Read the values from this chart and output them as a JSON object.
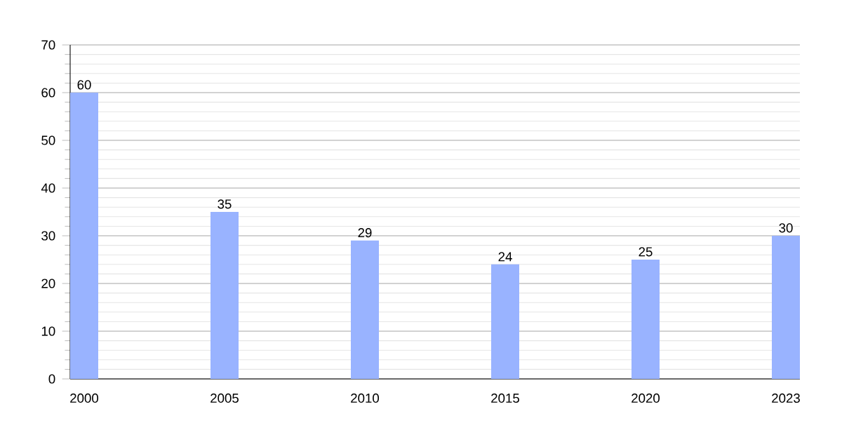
{
  "chart_data": {
    "type": "bar",
    "categories": [
      "2000",
      "2005",
      "2010",
      "2015",
      "2020",
      "2023"
    ],
    "values": [
      60,
      35,
      29,
      24,
      25,
      30
    ],
    "color": "#99b3ff",
    "ylim": [
      0,
      70
    ],
    "yticks": [
      0,
      10,
      20,
      30,
      40,
      50,
      60,
      70
    ],
    "grid": "y",
    "data_labels": true
  }
}
